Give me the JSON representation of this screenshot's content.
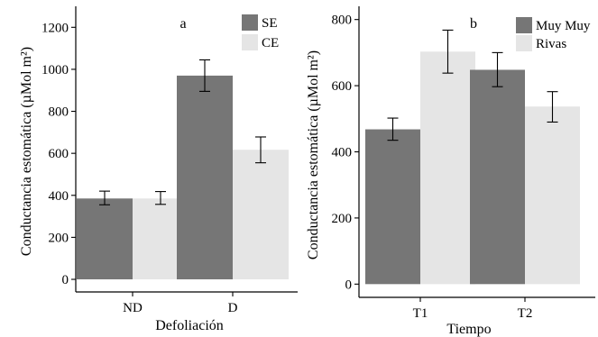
{
  "chart_data": [
    {
      "panel_label": "a",
      "type": "bar",
      "xlabel": "Defoliación",
      "ylabel": "Conductancia estomática (µMol m²)",
      "categories": [
        "ND",
        "D"
      ],
      "ylim": [
        -60,
        1300
      ],
      "yticks": [
        0,
        200,
        400,
        600,
        800,
        1000,
        1200
      ],
      "ytick_labels": [
        "0",
        "200",
        "400",
        "600",
        "800",
        "1000",
        "1200"
      ],
      "legend_position": "top-right",
      "grid": false,
      "series": [
        {
          "name": "SE",
          "color": "#767676",
          "values": [
            385,
            970
          ],
          "err_low": [
            355,
            895
          ],
          "err_high": [
            420,
            1045
          ]
        },
        {
          "name": "CE",
          "color": "#e5e5e5",
          "values": [
            385,
            617
          ],
          "err_low": [
            357,
            555
          ],
          "err_high": [
            418,
            678
          ]
        }
      ]
    },
    {
      "panel_label": "b",
      "type": "bar",
      "xlabel": "Tiempo",
      "ylabel": "Conductancia estomática (µMol m²)",
      "categories": [
        "T1",
        "T2"
      ],
      "ylim": [
        -40,
        840
      ],
      "yticks": [
        0,
        200,
        400,
        600,
        800
      ],
      "ytick_labels": [
        "0",
        "200",
        "400",
        "600",
        "800"
      ],
      "legend_position": "top-right",
      "grid": false,
      "series": [
        {
          "name": "Muy Muy",
          "color": "#767676",
          "values": [
            468,
            648
          ],
          "err_low": [
            435,
            597
          ],
          "err_high": [
            502,
            700
          ]
        },
        {
          "name": "Rivas",
          "color": "#e5e5e5",
          "values": [
            703,
            537
          ],
          "err_low": [
            638,
            490
          ],
          "err_high": [
            768,
            582
          ]
        }
      ]
    }
  ]
}
